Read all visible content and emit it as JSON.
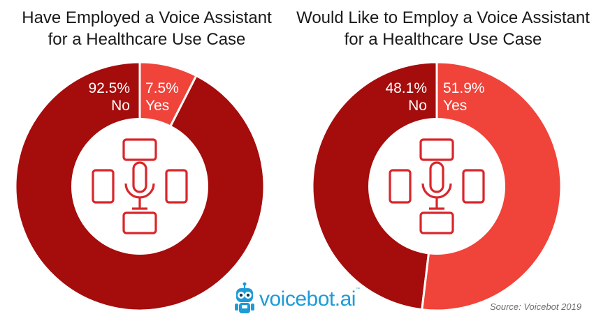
{
  "chart_data": [
    {
      "type": "pie",
      "variant": "donut",
      "title_lines": [
        "Have Employed a Voice Assistant",
        "for a Healthcare Use Case"
      ],
      "slices": [
        {
          "label": "Yes",
          "value": 7.5,
          "display": "7.5%",
          "color": "#f0433a"
        },
        {
          "label": "No",
          "value": 92.5,
          "display": "92.5%",
          "color": "#a50c0c"
        }
      ]
    },
    {
      "type": "pie",
      "variant": "donut",
      "title_lines": [
        "Would Like to Employ a Voice Assistant",
        "for a Healthcare Use Case"
      ],
      "slices": [
        {
          "label": "Yes",
          "value": 51.9,
          "display": "51.9%",
          "color": "#f0433a"
        },
        {
          "label": "No",
          "value": 48.1,
          "display": "48.1%",
          "color": "#a50c0c"
        }
      ]
    }
  ],
  "center_icon": "medical-cross-microphone-icon",
  "brand": {
    "name": "voicebot.ai",
    "trademark": "™",
    "icon": "robot-mascot-icon",
    "color": "#1d9bd7"
  },
  "source": "Source: Voicebot 2019"
}
